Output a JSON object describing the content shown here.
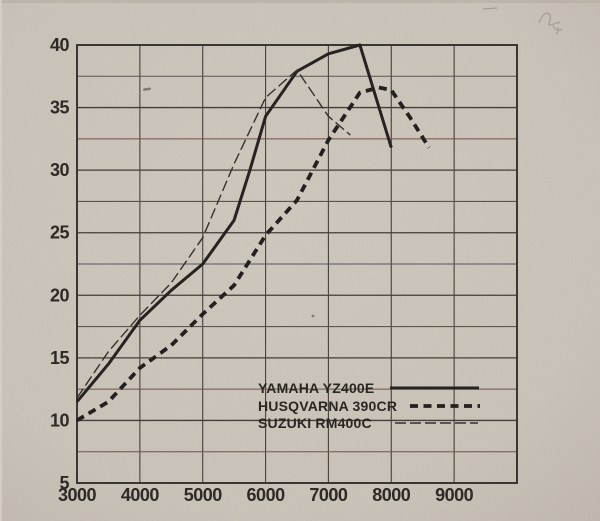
{
  "colors": {
    "paper": "#cac3b8",
    "paper_edge": "#c1b9ae",
    "ink": "#26221d"
  },
  "chart_data": {
    "type": "line",
    "title": "",
    "xlabel": "",
    "ylabel": "",
    "xlim": [
      3000,
      10000
    ],
    "ylim": [
      5,
      40
    ],
    "x_tick_labels": [
      "3000",
      "4000",
      "5000",
      "6000",
      "7000",
      "8000",
      "9000"
    ],
    "x_ticks": [
      3000,
      4000,
      5000,
      6000,
      7000,
      8000,
      9000
    ],
    "y_tick_labels": [
      "5",
      "10",
      "15",
      "20",
      "25",
      "30",
      "35",
      "40"
    ],
    "y_ticks": [
      5,
      10,
      15,
      20,
      25,
      30,
      35,
      40
    ],
    "x_grid_step": 1000,
    "y_grid_step": 2.5,
    "grid": true,
    "legend_position": "inside-lower-right",
    "series": [
      {
        "name": "YAMAHA YZ400E",
        "style": "solid-bold",
        "points": [
          [
            3000,
            11.5
          ],
          [
            3500,
            14.5
          ],
          [
            4000,
            18.0
          ],
          [
            4500,
            20.4
          ],
          [
            5000,
            22.5
          ],
          [
            5500,
            26.0
          ],
          [
            5750,
            30.0
          ],
          [
            6000,
            34.3
          ],
          [
            6500,
            37.9
          ],
          [
            7000,
            39.3
          ],
          [
            7500,
            40.0
          ],
          [
            8000,
            31.8
          ]
        ]
      },
      {
        "name": "HUSQVARNA 390CR",
        "style": "dashed-bold",
        "points": [
          [
            3000,
            10.0
          ],
          [
            3500,
            11.5
          ],
          [
            4000,
            14.2
          ],
          [
            4500,
            16.0
          ],
          [
            5000,
            18.5
          ],
          [
            5500,
            20.8
          ],
          [
            6000,
            24.8
          ],
          [
            6500,
            27.6
          ],
          [
            7000,
            32.4
          ],
          [
            7500,
            36.2
          ],
          [
            7800,
            36.6
          ],
          [
            8000,
            36.4
          ],
          [
            8300,
            34.2
          ],
          [
            8600,
            31.8
          ]
        ]
      },
      {
        "name": "SUZUKI RM400C",
        "style": "dashed-thin",
        "points": [
          [
            3000,
            11.8
          ],
          [
            3500,
            15.5
          ],
          [
            4000,
            18.4
          ],
          [
            4500,
            21.0
          ],
          [
            5000,
            24.6
          ],
          [
            5500,
            30.5
          ],
          [
            6000,
            35.8
          ],
          [
            6500,
            38.0
          ],
          [
            7000,
            34.3
          ],
          [
            7350,
            32.8
          ]
        ]
      }
    ]
  },
  "artifacts": {
    "pencil_mark": "handwritten-scribble-top-right"
  }
}
